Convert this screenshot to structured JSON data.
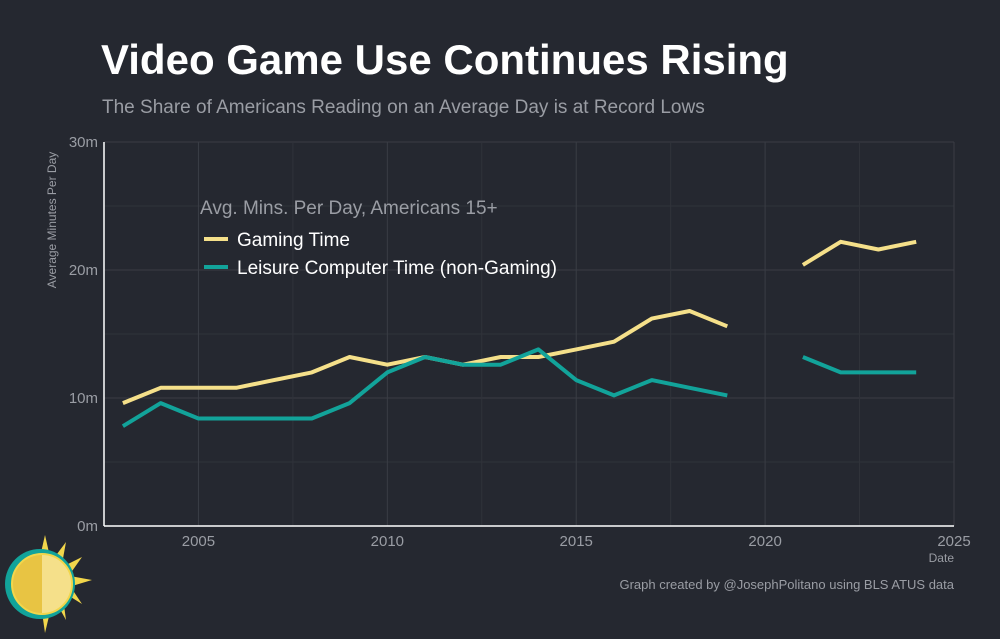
{
  "title": "Video Game Use Continues Rising",
  "subtitle": "The Share of Americans Reading on an Average Day is at Record Lows",
  "credit": "Graph created by @JosephPolitano using BLS ATUS data",
  "chart_data": {
    "type": "line",
    "xlabel": "Date",
    "ylabel": "Average Minutes Per Day",
    "xlim": [
      2002.5,
      2025
    ],
    "ylim": [
      0,
      30
    ],
    "x_ticks": [
      2005,
      2010,
      2015,
      2020,
      2025
    ],
    "y_ticks": [
      0,
      10,
      20,
      30
    ],
    "y_tick_labels": [
      "0m",
      "10m",
      "20m",
      "30m"
    ],
    "grid": true,
    "legend": {
      "title": "Avg. Mins. Per Day, Americans 15+",
      "placement": "top-left"
    },
    "series": [
      {
        "name": "Gaming Time",
        "color": "#f5e08a",
        "x": [
          2003,
          2004,
          2005,
          2006,
          2007,
          2008,
          2009,
          2010,
          2011,
          2012,
          2013,
          2014,
          2015,
          2016,
          2017,
          2018,
          2019,
          null,
          2021,
          2022,
          2023,
          2024
        ],
        "y": [
          9.6,
          10.8,
          10.8,
          10.8,
          11.4,
          12.0,
          13.2,
          12.6,
          13.2,
          12.6,
          13.2,
          13.2,
          13.8,
          14.4,
          16.2,
          16.8,
          15.6,
          null,
          20.4,
          22.2,
          21.6,
          22.2
        ]
      },
      {
        "name": "Leisure Computer Time (non-Gaming)",
        "color": "#12a39a",
        "x": [
          2003,
          2004,
          2005,
          2006,
          2007,
          2008,
          2009,
          2010,
          2011,
          2012,
          2013,
          2014,
          2015,
          2016,
          2017,
          2018,
          2019,
          null,
          2021,
          2022,
          2023,
          2024
        ],
        "y": [
          7.8,
          9.6,
          8.4,
          8.4,
          8.4,
          8.4,
          9.6,
          12.0,
          13.2,
          12.6,
          12.6,
          13.8,
          11.4,
          10.2,
          11.4,
          10.8,
          10.2,
          null,
          13.2,
          12.0,
          12.0,
          12.0
        ]
      }
    ]
  }
}
